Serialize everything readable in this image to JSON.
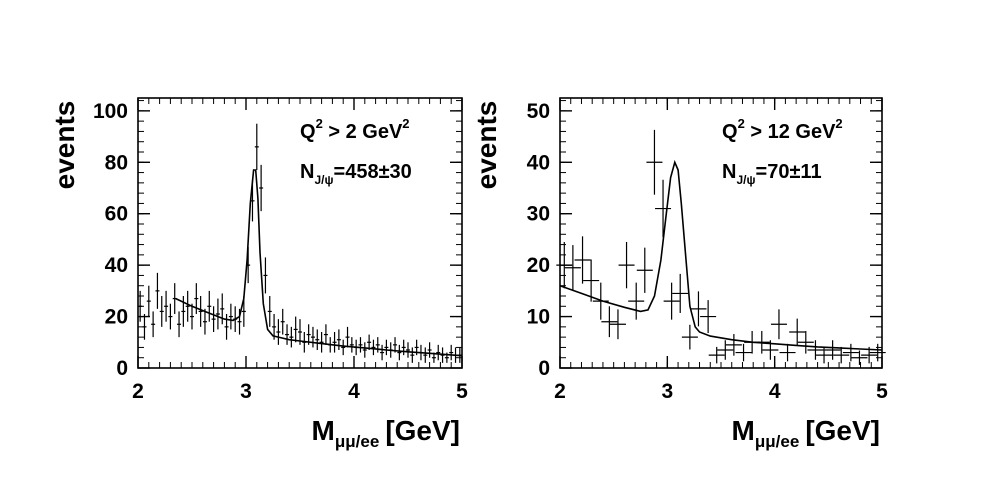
{
  "chart_data": [
    {
      "type": "scatter",
      "xlabel": {
        "main": "M",
        "sub": "μμ/ee",
        "unit": "[GeV]"
      },
      "ylabel": "events",
      "xlim": [
        2,
        5
      ],
      "ylim": [
        0,
        105
      ],
      "xticks": [
        2,
        3,
        4,
        5
      ],
      "yticks": [
        0,
        20,
        40,
        60,
        80,
        100
      ],
      "annotation_q2": {
        "prefix": "Q",
        "exp": "2",
        "mid": " > 2 GeV",
        "exp2": "2"
      },
      "annotation_n": {
        "prefix": "N",
        "sub": "J/ψ",
        "value": "=458±30"
      },
      "series": [
        {
          "name": "data",
          "x": [
            2.02,
            2.06,
            2.1,
            2.14,
            2.18,
            2.22,
            2.26,
            2.3,
            2.34,
            2.38,
            2.42,
            2.46,
            2.5,
            2.54,
            2.58,
            2.62,
            2.66,
            2.7,
            2.74,
            2.78,
            2.82,
            2.86,
            2.9,
            2.94,
            2.98,
            3.02,
            3.06,
            3.1,
            3.14,
            3.18,
            3.22,
            3.26,
            3.3,
            3.34,
            3.38,
            3.42,
            3.46,
            3.5,
            3.54,
            3.58,
            3.62,
            3.66,
            3.7,
            3.74,
            3.78,
            3.82,
            3.86,
            3.9,
            3.94,
            3.98,
            4.02,
            4.06,
            4.1,
            4.14,
            4.18,
            4.22,
            4.26,
            4.3,
            4.34,
            4.38,
            4.42,
            4.46,
            4.5,
            4.54,
            4.58,
            4.62,
            4.66,
            4.7,
            4.74,
            4.78,
            4.82,
            4.86,
            4.9,
            4.94,
            4.98
          ],
          "y": [
            24,
            16,
            26,
            17,
            30,
            22,
            24,
            20,
            27,
            17,
            22,
            24,
            20,
            27,
            22,
            18,
            24,
            19,
            21,
            23,
            16,
            20,
            19,
            18,
            22,
            40,
            65,
            86,
            70,
            36,
            22,
            16,
            14,
            18,
            13,
            12,
            15,
            14,
            10,
            13,
            12,
            11,
            10,
            13,
            9,
            10,
            11,
            8,
            12,
            9,
            8,
            9,
            7,
            10,
            8,
            9,
            6,
            8,
            7,
            9,
            6,
            8,
            7,
            5,
            8,
            6,
            5,
            7,
            4,
            6,
            5,
            4,
            6,
            5,
            5
          ],
          "yerr": [
            6,
            5,
            6,
            5,
            7,
            6,
            6,
            5,
            6,
            5,
            6,
            6,
            5,
            6,
            6,
            5,
            6,
            5,
            6,
            6,
            5,
            5,
            5,
            5,
            6,
            7,
            8,
            9,
            9,
            7,
            6,
            5,
            5,
            5,
            4,
            4,
            5,
            5,
            4,
            4,
            4,
            4,
            4,
            4,
            3,
            4,
            4,
            3,
            4,
            3,
            3,
            3,
            3,
            3,
            3,
            3,
            3,
            3,
            3,
            3,
            3,
            3,
            3,
            3,
            3,
            3,
            3,
            3,
            2,
            3,
            3,
            2,
            3,
            3,
            3
          ]
        },
        {
          "name": "fit",
          "x": [
            2.35,
            2.5,
            2.65,
            2.8,
            2.88,
            2.94,
            2.98,
            3.01,
            3.04,
            3.07,
            3.09,
            3.11,
            3.13,
            3.16,
            3.2,
            3.25,
            3.3,
            3.4,
            3.5,
            3.7,
            3.9,
            4.1,
            4.3,
            4.5,
            4.7,
            4.9,
            5.0
          ],
          "y": [
            27,
            24,
            21.5,
            19,
            18.5,
            20,
            27,
            42,
            64,
            77,
            77,
            66,
            45,
            25,
            15,
            12.5,
            12,
            11,
            10.5,
            9.5,
            8.5,
            7.8,
            7,
            6.3,
            5.7,
            5.1,
            4.8
          ]
        }
      ]
    },
    {
      "type": "scatter",
      "xlabel": {
        "main": "M",
        "sub": "μμ/ee",
        "unit": "[GeV]"
      },
      "ylabel": "events",
      "xlim": [
        2,
        5
      ],
      "ylim": [
        0,
        52.5
      ],
      "xticks": [
        2,
        3,
        4,
        5
      ],
      "yticks": [
        0,
        10,
        20,
        30,
        40,
        50
      ],
      "annotation_q2": {
        "prefix": "Q",
        "exp": "2",
        "mid": " > 12 GeV",
        "exp2": "2"
      },
      "annotation_n": {
        "prefix": "N",
        "sub": "J/ψ",
        "value": "=70±11"
      },
      "series": [
        {
          "name": "data",
          "x": [
            2.04,
            2.12,
            2.21,
            2.29,
            2.38,
            2.46,
            2.54,
            2.62,
            2.71,
            2.79,
            2.88,
            2.96,
            3.04,
            3.12,
            3.21,
            3.29,
            3.38,
            3.46,
            3.54,
            3.62,
            3.71,
            3.79,
            3.88,
            3.96,
            4.04,
            4.12,
            4.21,
            4.29,
            4.38,
            4.46,
            4.54,
            4.62,
            4.71,
            4.79,
            4.88,
            4.96
          ],
          "y": [
            20,
            19.5,
            21,
            17,
            13,
            9,
            8.5,
            20,
            13,
            19,
            40,
            31,
            13,
            14.5,
            6,
            11.5,
            10,
            2.5,
            3.5,
            4.5,
            3,
            5,
            5,
            3.5,
            8.5,
            3,
            7,
            5,
            3.5,
            2.5,
            3.5,
            2.5,
            3,
            2,
            2.5,
            3
          ],
          "yerr": [
            4.5,
            4.4,
            4.6,
            4.1,
            3.6,
            3,
            2.9,
            4.5,
            3.6,
            4.4,
            6.3,
            5.6,
            3.6,
            3.8,
            2.4,
            3.4,
            3.2,
            1.6,
            1.9,
            2.1,
            1.7,
            2.2,
            2.2,
            1.9,
            2.9,
            1.7,
            2.6,
            2.2,
            1.9,
            1.6,
            1.9,
            1.6,
            1.7,
            1.4,
            1.6,
            1.7
          ]
        },
        {
          "name": "fit",
          "x": [
            2.0,
            2.2,
            2.4,
            2.6,
            2.75,
            2.82,
            2.88,
            2.94,
            2.99,
            3.03,
            3.07,
            3.1,
            3.13,
            3.17,
            3.21,
            3.26,
            3.3,
            3.4,
            3.6,
            3.8,
            4.0,
            4.2,
            4.4,
            4.6,
            4.8,
            5.0
          ],
          "y": [
            16,
            14.5,
            13,
            11.8,
            11,
            11.3,
            14,
            21,
            30,
            37,
            40,
            38.5,
            32,
            22,
            12,
            8,
            7,
            6.2,
            5.5,
            5,
            4.7,
            4.4,
            4.1,
            3.9,
            3.7,
            3.5
          ]
        }
      ]
    }
  ]
}
